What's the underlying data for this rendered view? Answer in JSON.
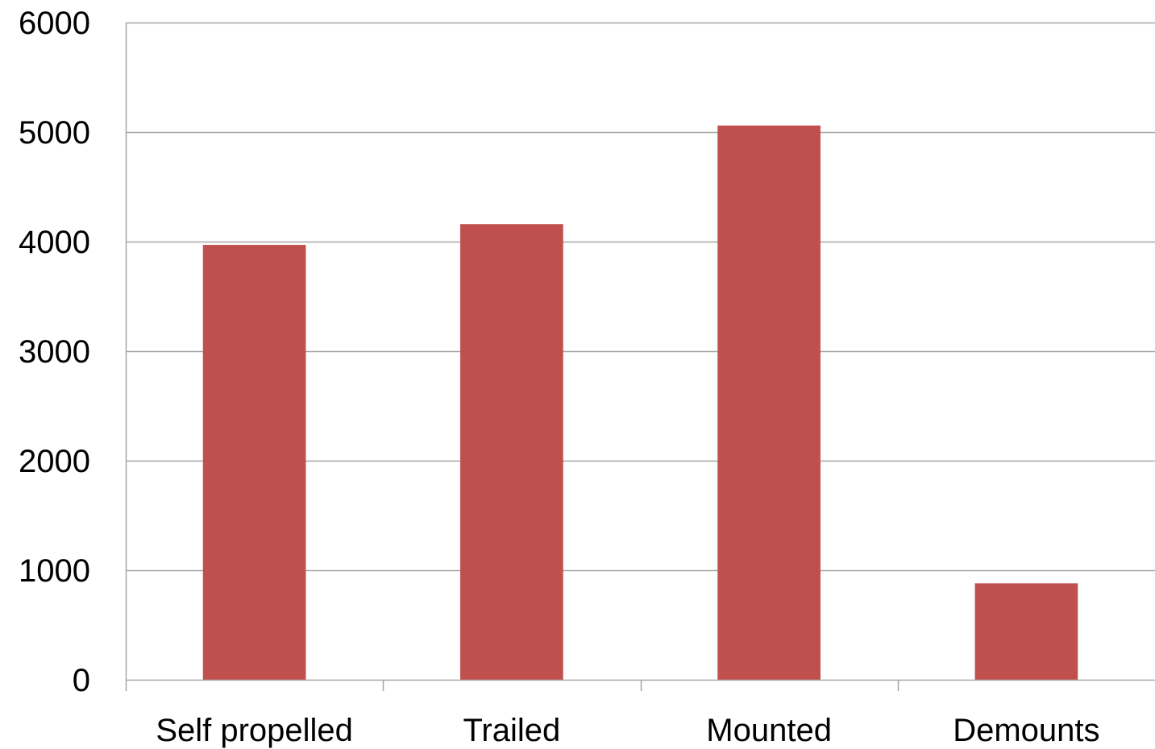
{
  "chart_data": {
    "type": "bar",
    "title": "",
    "xlabel": "",
    "ylabel": "",
    "categories": [
      "Self propelled",
      "Trailed",
      "Mounted",
      "Demounts"
    ],
    "values": [
      3970,
      4160,
      5060,
      880
    ],
    "ylim": [
      0,
      6000
    ],
    "yticks": [
      0,
      1000,
      2000,
      3000,
      4000,
      5000,
      6000
    ],
    "ytick_labels": [
      "0",
      "1000",
      "2000",
      "3000",
      "4000",
      "5000",
      "6000"
    ],
    "grid": true,
    "legend": "none",
    "colors": {
      "bar": "#c0504d",
      "grid": "#a6a6a6",
      "axis": "#a6a6a6"
    }
  }
}
